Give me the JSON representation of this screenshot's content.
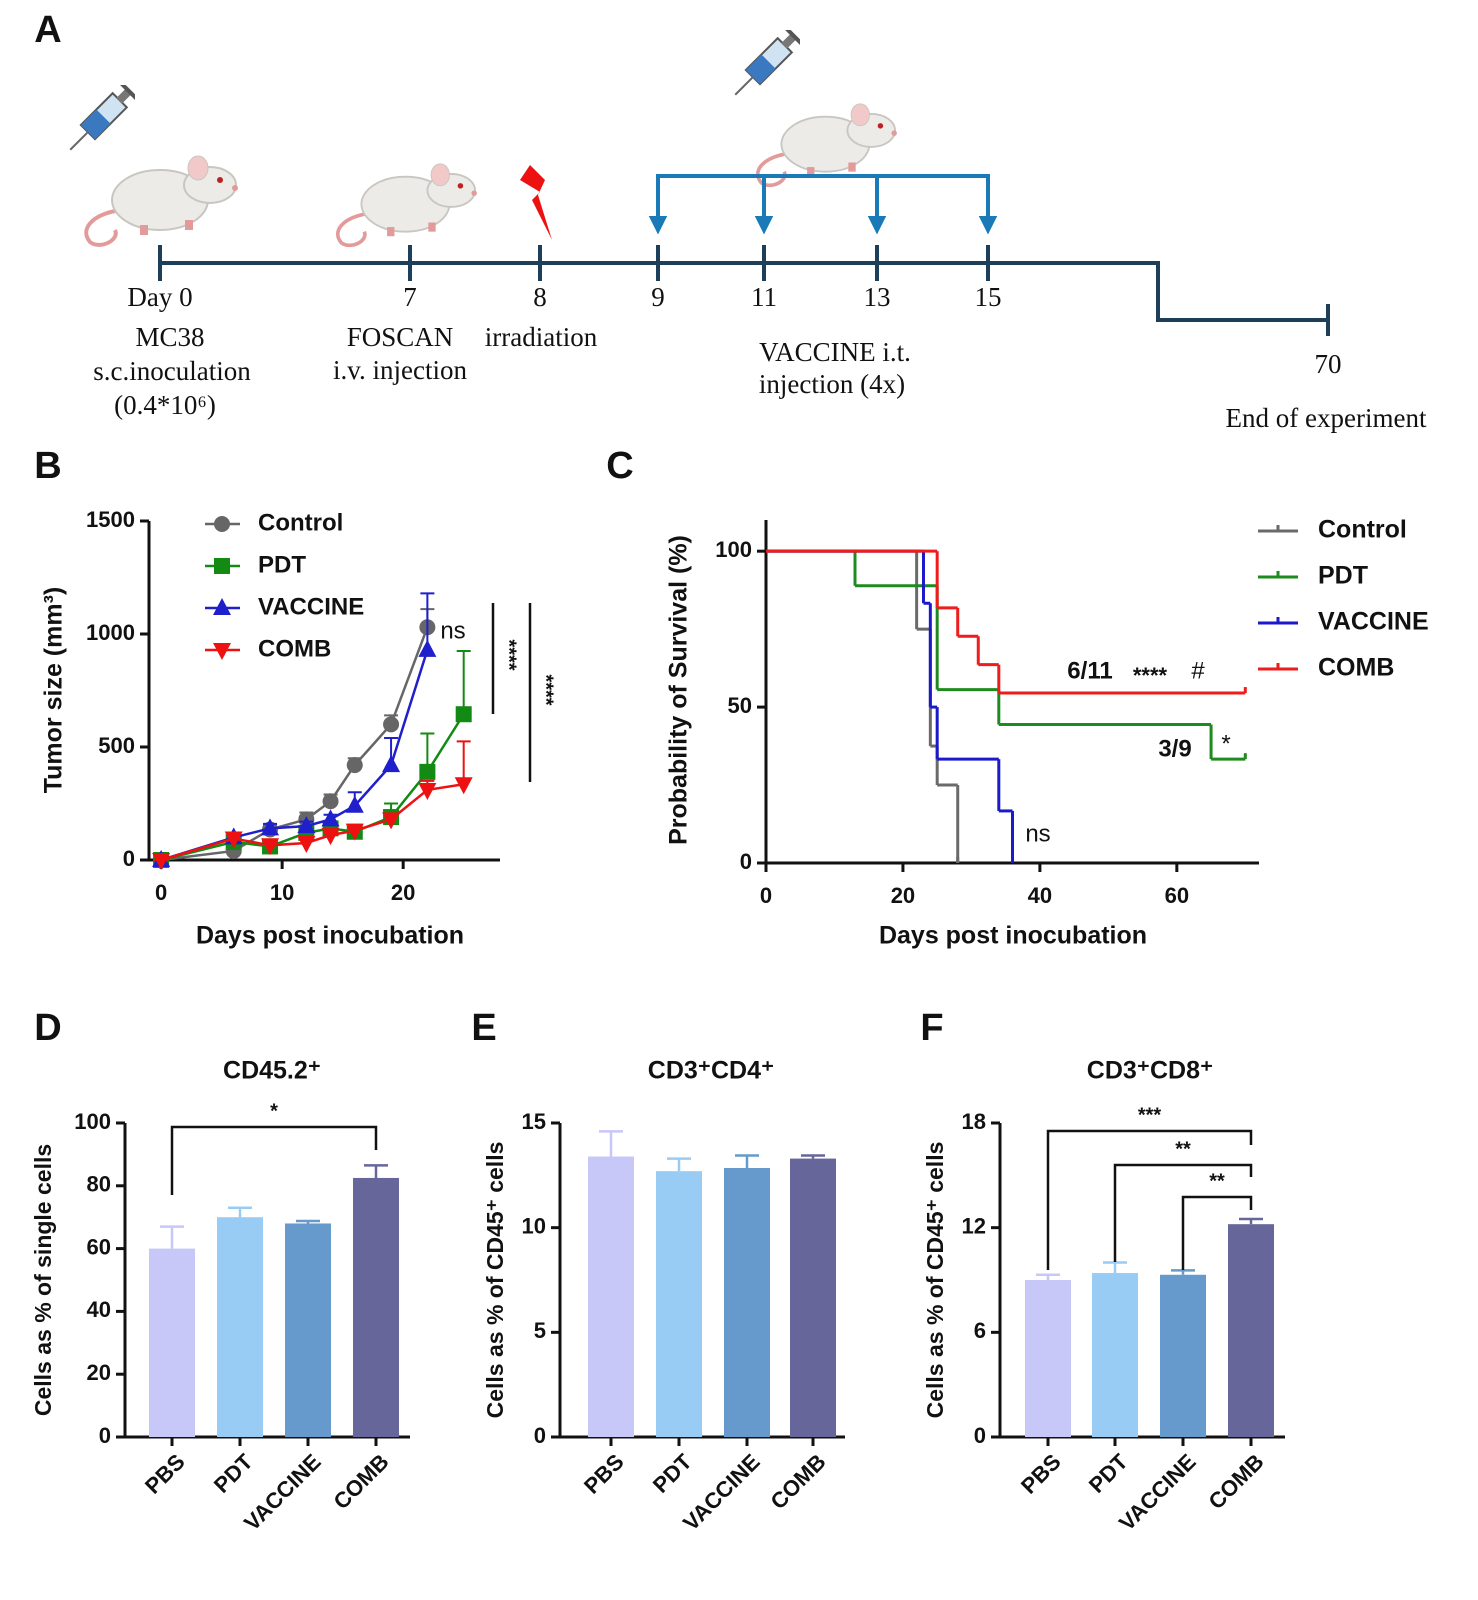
{
  "timeline": {
    "panel_label": "A",
    "days": [
      "Day 0",
      "7",
      "8",
      "9",
      "11",
      "13",
      "15",
      "70"
    ],
    "notes": [
      [
        "MC38",
        "s.c.inoculation",
        "(0.4*10⁶)"
      ],
      [
        "FOSCAN",
        "i.v. injection"
      ],
      [
        "irradiation"
      ],
      [
        "VACCINE i.t.",
        "injection  (4x)"
      ],
      [
        "End of experiment"
      ]
    ]
  },
  "chart_data": [
    {
      "panel_label": "B",
      "type": "line",
      "xlabel": "Days post inocubation",
      "ylabel": "Tumor size (mm³)",
      "xlim": [
        -1,
        28
      ],
      "ylim": [
        0,
        1500
      ],
      "xticks": [
        0,
        10,
        20
      ],
      "yticks": [
        0,
        500,
        1000,
        1500
      ],
      "series": [
        {
          "name": "Control",
          "color": "#666666",
          "marker": "circle",
          "x": [
            0,
            6,
            9,
            12,
            14,
            16,
            19,
            22
          ],
          "values": [
            0,
            40,
            135,
            180,
            260,
            420,
            600,
            1030
          ],
          "errors": [
            0,
            20,
            20,
            30,
            30,
            30,
            40,
            80
          ]
        },
        {
          "name": "PDT",
          "color": "#138a13",
          "marker": "square",
          "x": [
            0,
            6,
            9,
            12,
            14,
            16,
            19,
            22,
            25
          ],
          "values": [
            0,
            80,
            60,
            120,
            140,
            125,
            190,
            390,
            645
          ],
          "errors": [
            0,
            20,
            15,
            20,
            20,
            15,
            60,
            170,
            280
          ]
        },
        {
          "name": "VACCINE",
          "color": "#1f1fcc",
          "marker": "triangle-up",
          "x": [
            0,
            6,
            9,
            12,
            14,
            16,
            19,
            22
          ],
          "values": [
            0,
            100,
            140,
            150,
            180,
            240,
            420,
            930
          ],
          "errors": [
            0,
            10,
            20,
            20,
            20,
            60,
            120,
            250
          ]
        },
        {
          "name": "COMB",
          "color": "#ee1111",
          "marker": "triangle-down",
          "x": [
            0,
            6,
            9,
            12,
            14,
            16,
            19,
            22,
            25
          ],
          "values": [
            0,
            95,
            65,
            75,
            110,
            130,
            180,
            310,
            335
          ],
          "errors": [
            0,
            20,
            20,
            15,
            10,
            10,
            20,
            40,
            190
          ]
        }
      ],
      "annotations": [
        "ns",
        "****",
        "****"
      ]
    },
    {
      "panel_label": "C",
      "type": "step",
      "xlabel": "Days post inocubation",
      "ylabel": "Probability of Survival (%)",
      "xlim": [
        0,
        72
      ],
      "ylim": [
        0,
        110
      ],
      "xticks": [
        0,
        20,
        40,
        60
      ],
      "yticks": [
        0,
        50,
        100
      ],
      "series": [
        {
          "name": "Control",
          "color": "#6a6a6a",
          "x": [
            0,
            22,
            24,
            25,
            28
          ],
          "values": [
            100,
            75,
            37.5,
            25,
            0
          ]
        },
        {
          "name": "PDT",
          "color": "#1f8a1f",
          "x": [
            0,
            13,
            25,
            34,
            65,
            70
          ],
          "values": [
            100,
            88.9,
            55.6,
            44.4,
            33.3,
            33.3
          ]
        },
        {
          "name": "VACCINE",
          "color": "#1a1acc",
          "x": [
            0,
            23,
            24,
            25,
            34,
            36
          ],
          "values": [
            100,
            83.3,
            50,
            33.3,
            16.7,
            0
          ]
        },
        {
          "name": "COMB",
          "color": "#ee1c1c",
          "x": [
            0,
            25,
            28,
            31,
            34,
            70
          ],
          "values": [
            100,
            81.8,
            72.7,
            63.6,
            54.5,
            54.5
          ]
        }
      ],
      "annotations": [
        "6/11",
        "****",
        "#",
        "3/9",
        "*",
        "ns"
      ]
    },
    {
      "panel_label": "D",
      "type": "bar",
      "title": "CD45.2⁺",
      "ylabel": "Cells as % of single cells",
      "categories": [
        "PBS",
        "PDT",
        "VACCINE",
        "COMB"
      ],
      "values": [
        60,
        70,
        68,
        82.5
      ],
      "errors": [
        7,
        3,
        0.8,
        4
      ],
      "colors": [
        "#c8c8f8",
        "#99ccf5",
        "#6699cc",
        "#66669a"
      ],
      "ylim": [
        0,
        100
      ],
      "yticks": [
        0,
        20,
        40,
        60,
        80,
        100
      ],
      "significance": [
        "*"
      ]
    },
    {
      "panel_label": "E",
      "type": "bar",
      "title": "CD3⁺CD4⁺",
      "ylabel": "Cells as % of CD45⁺ cells",
      "categories": [
        "PBS",
        "PDT",
        "VACCINE",
        "COMB"
      ],
      "values": [
        13.4,
        12.7,
        12.85,
        13.3
      ],
      "errors": [
        1.2,
        0.6,
        0.6,
        0.15
      ],
      "colors": [
        "#c8c8f8",
        "#99ccf5",
        "#6699cc",
        "#66669a"
      ],
      "ylim": [
        0,
        15
      ],
      "yticks": [
        0,
        5,
        10,
        15
      ],
      "significance": []
    },
    {
      "panel_label": "F",
      "type": "bar",
      "title": "CD3⁺CD8⁺",
      "ylabel": "Cells as % of CD45⁺ cells",
      "categories": [
        "PBS",
        "PDT",
        "VACCINE",
        "COMB"
      ],
      "values": [
        9.0,
        9.4,
        9.3,
        12.2
      ],
      "errors": [
        0.3,
        0.6,
        0.25,
        0.3
      ],
      "colors": [
        "#c8c8f8",
        "#99ccf5",
        "#6699cc",
        "#66669a"
      ],
      "ylim": [
        0,
        18
      ],
      "yticks": [
        0,
        6,
        12,
        18
      ],
      "significance": [
        "***",
        "**",
        "**"
      ]
    }
  ]
}
